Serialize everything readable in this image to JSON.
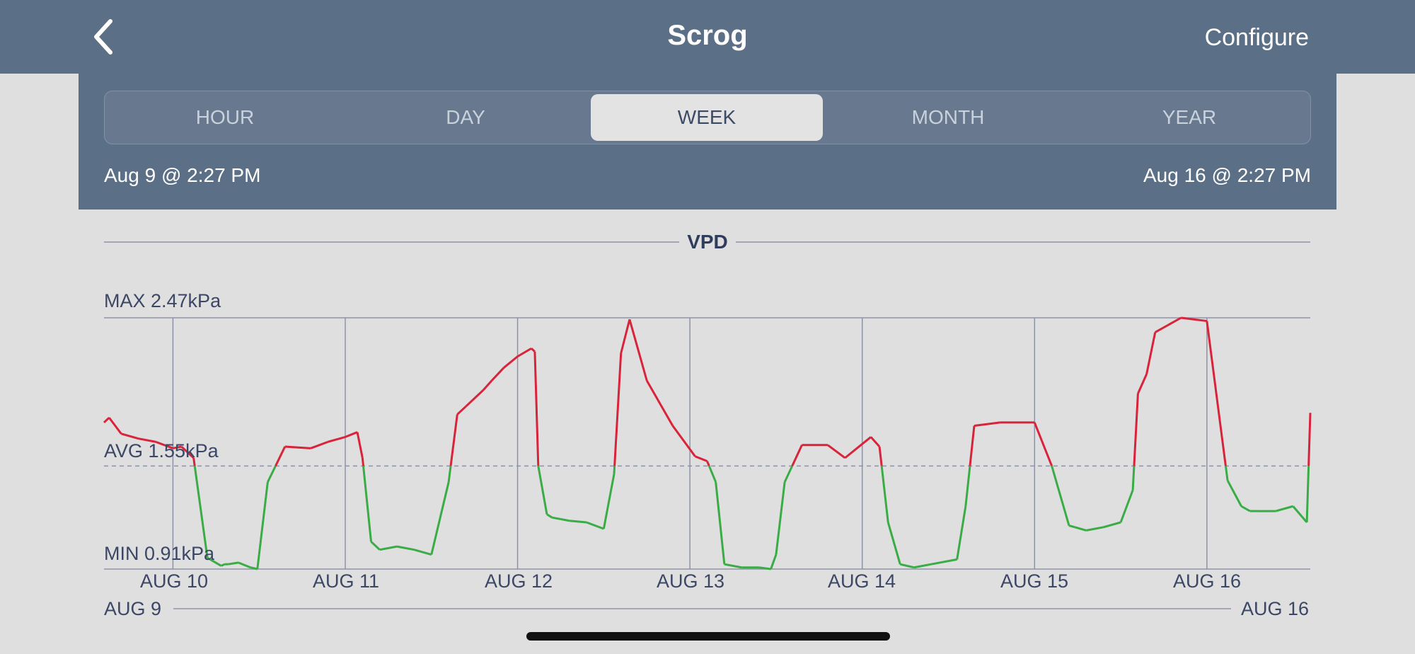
{
  "header": {
    "title": "Scrog",
    "configure_label": "Configure"
  },
  "time_tabs": [
    {
      "label": "HOUR",
      "active": false
    },
    {
      "label": "DAY",
      "active": false
    },
    {
      "label": "WEEK",
      "active": true
    },
    {
      "label": "MONTH",
      "active": false
    },
    {
      "label": "YEAR",
      "active": false
    }
  ],
  "range": {
    "start": "Aug 9 @ 2:27 PM",
    "end": "Aug 16 @ 2:27 PM"
  },
  "colors": {
    "header_bg": "#5b6f86",
    "above_avg": "#d9233a",
    "below_avg": "#3aac45",
    "axis": "#8d93a7"
  },
  "chart_data": {
    "type": "line",
    "title": "VPD",
    "unit": "kPa",
    "max_label": "MAX 2.47kPa",
    "avg_label": "AVG 1.55kPa",
    "min_label": "MIN 0.91kPa",
    "max": 2.47,
    "avg": 1.55,
    "min": 0.91,
    "x_ticks": [
      "AUG 10",
      "AUG 11",
      "AUG 12",
      "AUG 13",
      "AUG 14",
      "AUG 15",
      "AUG 16"
    ],
    "x_range_labels": [
      "AUG 9",
      "AUG 16"
    ],
    "x_unit": "days since Aug 9 2:27 PM",
    "x_range": [
      0,
      7
    ],
    "line_colors_rule": "red above average, green below average",
    "series": [
      {
        "x": [
          0.0,
          0.03,
          0.1,
          0.2,
          0.3,
          0.4,
          0.45,
          0.52,
          0.6,
          0.68,
          0.7,
          0.72,
          0.78,
          0.85,
          0.89,
          0.9,
          0.95,
          1.05,
          1.2,
          1.3,
          1.4,
          1.47,
          1.5,
          1.55,
          1.6,
          1.7,
          1.8,
          1.9,
          2.0,
          2.05,
          2.1,
          2.2,
          2.25,
          2.32,
          2.4,
          2.48,
          2.5,
          2.52,
          2.57,
          2.6,
          2.65,
          2.7,
          2.8,
          2.9,
          2.96,
          3.0,
          3.05,
          3.15,
          3.3,
          3.43,
          3.5,
          3.55,
          3.6,
          3.7,
          3.8,
          3.87,
          3.9,
          3.95,
          4.05,
          4.2,
          4.3,
          4.45,
          4.5,
          4.55,
          4.62,
          4.7,
          4.8,
          4.95,
          5.0,
          5.05,
          5.2,
          5.4,
          5.5,
          5.6,
          5.7,
          5.8,
          5.9,
          5.97,
          6.0,
          6.05,
          6.1,
          6.25,
          6.4,
          6.52,
          6.6,
          6.65,
          6.7,
          6.8,
          6.9,
          6.98,
          7.0
        ],
        "y": [
          1.82,
          1.85,
          1.75,
          1.72,
          1.7,
          1.66,
          1.67,
          1.6,
          0.98,
          0.93,
          0.94,
          0.94,
          0.95,
          0.92,
          0.91,
          1.0,
          1.45,
          1.67,
          1.66,
          1.7,
          1.73,
          1.76,
          1.6,
          1.08,
          1.03,
          1.05,
          1.03,
          1.0,
          1.45,
          1.87,
          1.92,
          2.02,
          2.08,
          2.16,
          2.23,
          2.28,
          2.26,
          1.55,
          1.25,
          1.23,
          1.22,
          1.21,
          1.2,
          1.16,
          1.5,
          2.25,
          2.46,
          2.08,
          1.8,
          1.61,
          1.58,
          1.45,
          0.94,
          0.92,
          0.92,
          0.91,
          1.0,
          1.45,
          1.68,
          1.68,
          1.6,
          1.73,
          1.67,
          1.2,
          0.94,
          0.92,
          0.94,
          0.97,
          1.3,
          1.8,
          1.82,
          1.82,
          1.55,
          1.18,
          1.15,
          1.17,
          1.2,
          1.4,
          2.0,
          2.12,
          2.38,
          2.47,
          2.45,
          1.46,
          1.3,
          1.27,
          1.27,
          1.27,
          1.3,
          1.2,
          1.88
        ]
      }
    ]
  }
}
